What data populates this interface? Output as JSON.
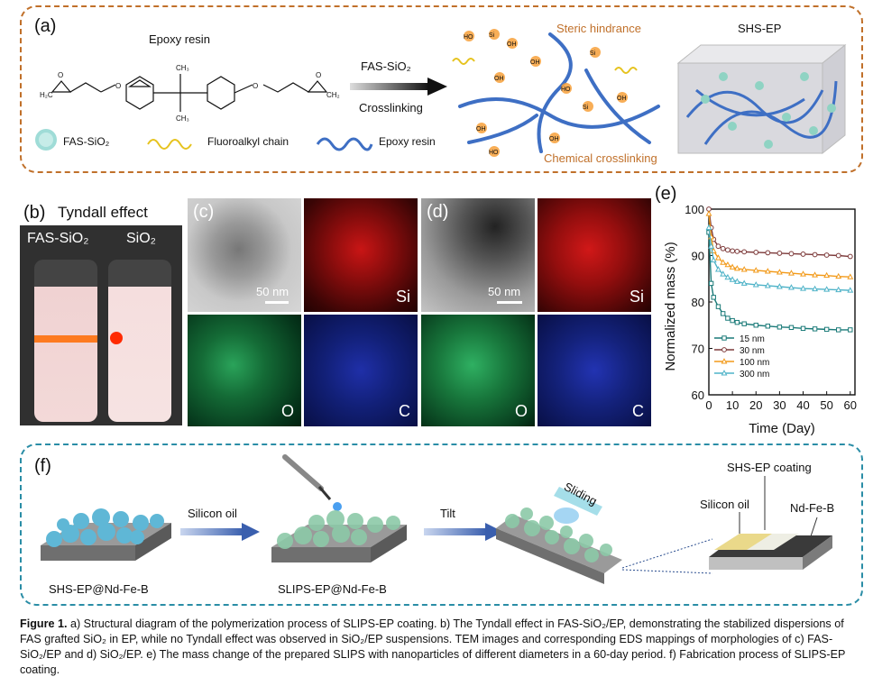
{
  "panel_a": {
    "label": "(a)",
    "epoxy_title": "Epoxy resin",
    "arrow_top": "FAS-SiO₂",
    "arrow_bottom": "Crosslinking",
    "steric": "Steric hindrance",
    "chemical": "Chemical crosslinking",
    "shs_ep": "SHS-EP",
    "legend": {
      "fas": "FAS-SiO₂",
      "chain": "Fluoroalkyl chain",
      "epoxy": "Epoxy resin"
    }
  },
  "panel_b": {
    "label": "(b)",
    "title": "Tyndall effect",
    "vial1": "FAS-SiO₂",
    "vial2": "SiO₂"
  },
  "panel_c": {
    "label": "(c)",
    "scale": "50 nm",
    "si": "Si",
    "o": "O",
    "c": "C"
  },
  "panel_d": {
    "label": "(d)",
    "scale": "50 nm",
    "si": "Si",
    "o": "O",
    "c": "C"
  },
  "panel_e": {
    "label": "(e)"
  },
  "panel_f": {
    "label": "(f)",
    "step1": "Silicon oil",
    "step2": "Tilt",
    "sliding": "Sliding",
    "shs_coating": "SHS-EP coating",
    "silicon_oil": "Silicon oil",
    "ndfeb": "Nd-Fe-B",
    "item1": "SHS-EP@Nd-Fe-B",
    "item2": "SLIPS-EP@Nd-Fe-B"
  },
  "caption": {
    "lead": "Figure 1.",
    "text": "a) Structural diagram of the polymerization process of SLIPS-EP coating. b) The Tyndall effect in FAS-SiO₂/EP, demonstrating the stabilized dispersions of FAS grafted SiO₂ in EP, while no Tyndall effect was observed in SiO₂/EP suspensions. TEM images and corresponding EDS mappings of morphologies of c) FAS-SiO₂/EP and d) SiO₂/EP. e) The mass change of the prepared SLIPS with nanoparticles of different diameters in a 60-day period. f) Fabrication process of SLIPS-EP coating."
  },
  "chart_data": {
    "type": "line",
    "xlabel": "Time (Day)",
    "ylabel": "Normalized mass (%)",
    "xlim": [
      0,
      62
    ],
    "ylim": [
      60,
      100
    ],
    "xticks": [
      0,
      10,
      20,
      30,
      40,
      50,
      60
    ],
    "yticks": [
      60,
      70,
      80,
      90,
      100
    ],
    "legend_position": "bottom-left",
    "series": [
      {
        "name": "15 nm",
        "color": "#1a7a78",
        "marker": "square",
        "x": [
          0,
          1,
          2,
          4,
          6,
          8,
          10,
          12,
          15,
          20,
          25,
          30,
          35,
          40,
          45,
          50,
          55,
          60
        ],
        "y": [
          95,
          84,
          81,
          79,
          77.5,
          76.5,
          76,
          75.6,
          75.3,
          75,
          74.8,
          74.6,
          74.5,
          74.3,
          74.2,
          74.1,
          74,
          74
        ]
      },
      {
        "name": "30 nm",
        "color": "#7d3a3a",
        "marker": "circle",
        "x": [
          0,
          1,
          2,
          4,
          6,
          8,
          10,
          12,
          15,
          20,
          25,
          30,
          35,
          40,
          45,
          50,
          55,
          60
        ],
        "y": [
          100,
          96,
          93.5,
          92,
          91.5,
          91.2,
          91,
          90.9,
          90.8,
          90.7,
          90.6,
          90.5,
          90.4,
          90.3,
          90.2,
          90.1,
          90,
          89.8
        ]
      },
      {
        "name": "100 nm",
        "color": "#f29a1a",
        "marker": "triangle",
        "x": [
          0,
          1,
          2,
          4,
          6,
          8,
          10,
          12,
          15,
          20,
          25,
          30,
          35,
          40,
          45,
          50,
          55,
          60
        ],
        "y": [
          99,
          94,
          91,
          89.5,
          88.5,
          88,
          87.5,
          87.2,
          87,
          86.8,
          86.6,
          86.4,
          86.2,
          86,
          85.8,
          85.7,
          85.5,
          85.4
        ]
      },
      {
        "name": "300 nm",
        "color": "#4fb3c8",
        "marker": "triangle",
        "x": [
          0,
          1,
          2,
          4,
          6,
          8,
          10,
          12,
          15,
          20,
          25,
          30,
          35,
          40,
          45,
          50,
          55,
          60
        ],
        "y": [
          96,
          92,
          89,
          87,
          86,
          85.3,
          84.8,
          84.4,
          84,
          83.7,
          83.5,
          83.3,
          83.1,
          82.9,
          82.8,
          82.7,
          82.6,
          82.5
        ]
      }
    ]
  }
}
